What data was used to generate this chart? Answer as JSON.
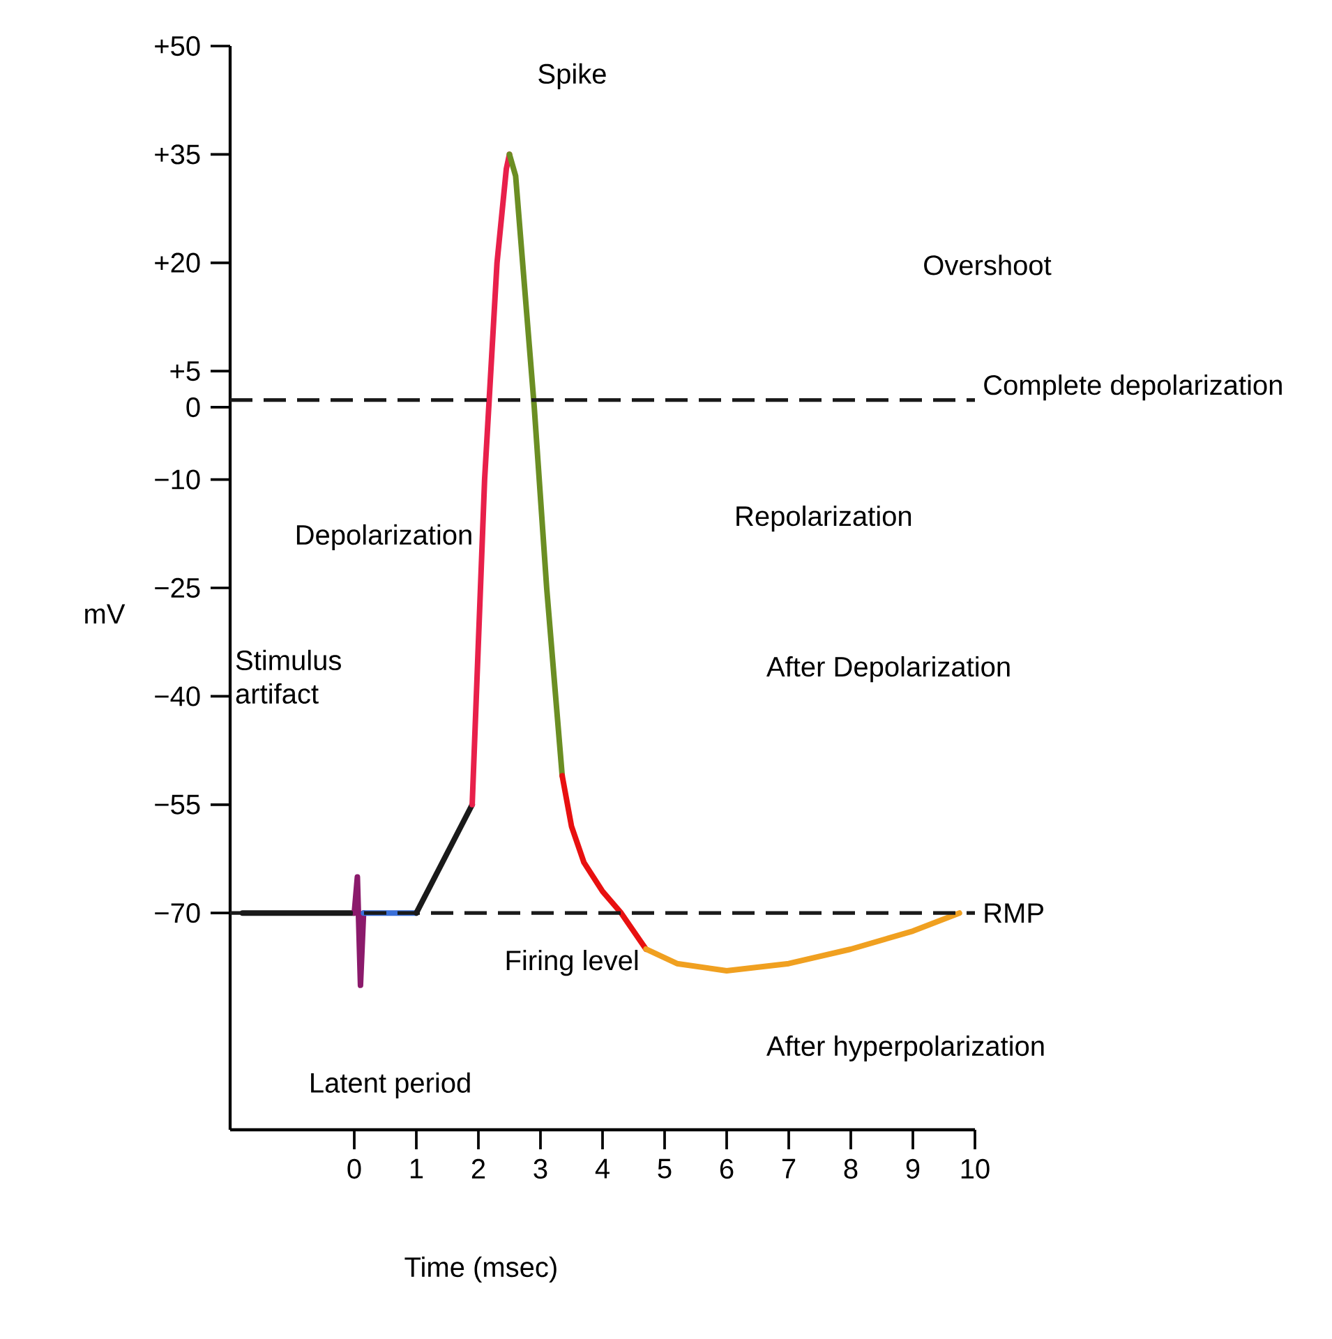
{
  "chart_data": {
    "type": "line",
    "xlabel": "Time (msec)",
    "ylabel": "mV",
    "xlim": [
      -2,
      10
    ],
    "xticks": [
      0,
      1,
      2,
      3,
      4,
      5,
      6,
      7,
      8,
      9,
      10
    ],
    "ylim": [
      -100,
      50
    ],
    "yticks": [
      {
        "value": 50,
        "label": "+50"
      },
      {
        "value": 35,
        "label": "+35"
      },
      {
        "value": 20,
        "label": "+20"
      },
      {
        "value": 5,
        "label": "+5"
      },
      0,
      {
        "value": -10,
        "label": "−10"
      },
      {
        "value": -25,
        "label": "−25"
      },
      {
        "value": -40,
        "label": "−40"
      },
      {
        "value": -55,
        "label": "−55"
      },
      {
        "value": -70,
        "label": "−70"
      }
    ],
    "grid": false,
    "marker": "none",
    "line_style": "solid",
    "series": [
      {
        "color": "#1a1a1a",
        "x": [
          -1.8,
          0
        ],
        "values": [
          -70,
          -70
        ]
      },
      {
        "color": "#8b1a6b",
        "x": [
          0,
          0.05,
          0.1,
          0.15
        ],
        "values": [
          -70,
          -65,
          -80,
          -70
        ]
      },
      {
        "color": "#3a6fd8",
        "x": [
          0.15,
          1
        ],
        "values": [
          -70,
          -70
        ]
      },
      {
        "color": "#1a1a1a",
        "x": [
          1,
          1.9
        ],
        "values": [
          -70,
          -55
        ]
      },
      {
        "color": "#e8204a",
        "x": [
          1.9,
          2.1,
          2.3,
          2.45,
          2.5
        ],
        "values": [
          -55,
          -10,
          20,
          33,
          35
        ]
      },
      {
        "color": "#6b8e23",
        "x": [
          2.5,
          2.6,
          2.9,
          3.1,
          3.35
        ],
        "values": [
          35,
          32,
          0,
          -25,
          -51
        ]
      },
      {
        "color": "#e81010",
        "x": [
          3.35,
          3.5,
          3.7,
          4.0,
          4.3,
          4.7
        ],
        "values": [
          -51,
          -58,
          -63,
          -67,
          -70,
          -75
        ]
      },
      {
        "color": "#f0a020",
        "x": [
          4.7,
          5.2,
          6,
          7,
          8,
          9,
          9.75
        ],
        "values": [
          -75,
          -77,
          -78,
          -77,
          -75,
          -72.5,
          -70
        ]
      }
    ],
    "ref_lines": [
      {
        "axis": "y",
        "value": 1,
        "label": "Complete depolarization",
        "color": "#1a1a1a",
        "line_style": "dashed"
      },
      {
        "axis": "y",
        "value": -70,
        "label": "RMP",
        "color": "#1a1a1a",
        "line_style": "dashed"
      }
    ],
    "annotations": [
      {
        "text": "Spike",
        "x": 2.5,
        "y": 35
      },
      "Overshoot",
      {
        "text": "Depolarization",
        "x": 2.13,
        "y": -18
      },
      "Repolarization",
      "Stimulus artifact",
      "Firing level",
      "After Depolarization",
      "After hyperpolarization",
      "Latent period"
    ]
  }
}
